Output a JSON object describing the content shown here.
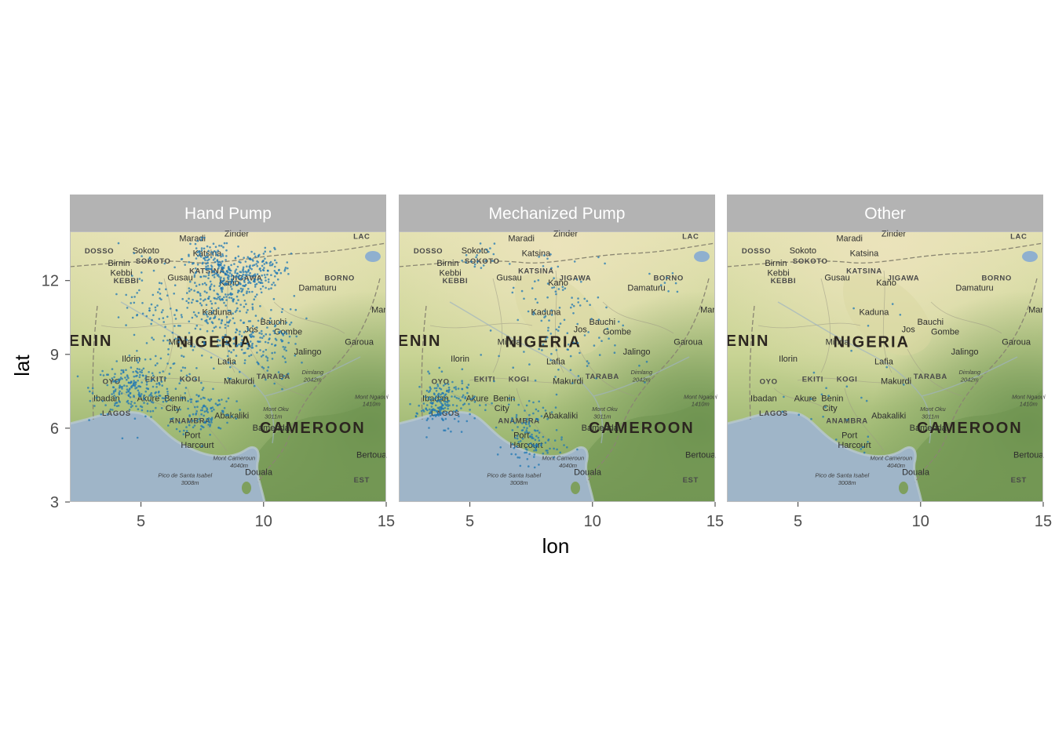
{
  "chart_data": {
    "type": "scatter",
    "xlabel": "lon",
    "ylabel": "lat",
    "xlim": [
      2.1,
      15.0
    ],
    "ylim": [
      3.0,
      14.0
    ],
    "x_ticks": [
      5,
      10,
      15
    ],
    "y_ticks": [
      3,
      6,
      9,
      12
    ],
    "facets": [
      "Hand Pump",
      "Mechanized Pump",
      "Other"
    ],
    "point_color": "#1f77b4",
    "strip_color": "#b3b3b3",
    "strip_text_color": "#ffffff",
    "map_labels": {
      "countries": [
        "NIGERIA",
        "CAMEROON",
        "ENIN"
      ],
      "regions": [
        "DOSSO",
        "SOKOTO",
        "KEBBI",
        "KATSINA",
        "JIGAWA",
        "BORNO",
        "KOGI",
        "TARABA",
        "EKITI",
        "OYO",
        "LAGOS",
        "ANAMBRA",
        "LAC",
        "EST"
      ],
      "cities": [
        "Maradi",
        "Zinder",
        "Sokoto",
        "Birnin",
        "Kebbi",
        "Gusau",
        "Katsina",
        "Kano",
        "Damaturu",
        "Kaduna",
        "Bauchi",
        "Gombe",
        "Jos",
        "Minna",
        "Garoua",
        "Jalingo",
        "Ilorin",
        "Lafia",
        "Makurdi",
        "Ibadan",
        "Akure",
        "Benin",
        "City",
        "Abakaliki",
        "Bamenda",
        "Port",
        "Harcourt",
        "Douala",
        "Bertoua",
        "Mar"
      ],
      "peaks": [
        "Mont Cameroun",
        "4040m",
        "Pico de Santa Isabel",
        "3008m",
        "Mont Oku",
        "3011m",
        "Dimlang",
        "2042m",
        "Mont Ngaoui",
        "1410m"
      ]
    },
    "series": [
      {
        "facet": "Hand Pump",
        "clusters": [
          {
            "lon": 8.4,
            "lat": 12.0,
            "sd_lon": 0.7,
            "sd_lat": 0.6,
            "n": 230
          },
          {
            "lon": 9.9,
            "lat": 12.4,
            "sd_lon": 0.6,
            "sd_lat": 0.4,
            "n": 120
          },
          {
            "lon": 7.7,
            "lat": 12.9,
            "sd_lon": 0.5,
            "sd_lat": 0.4,
            "n": 70
          },
          {
            "lon": 4.7,
            "lat": 7.6,
            "sd_lon": 0.8,
            "sd_lat": 0.5,
            "n": 210
          },
          {
            "lon": 7.6,
            "lat": 6.7,
            "sd_lon": 0.6,
            "sd_lat": 0.5,
            "n": 110
          },
          {
            "lon": 9.3,
            "lat": 9.4,
            "sd_lon": 0.6,
            "sd_lat": 0.5,
            "n": 90
          },
          {
            "lon": 8.2,
            "lat": 10.5,
            "sd_lon": 1.2,
            "sd_lat": 0.7,
            "n": 110
          },
          {
            "lon": 10.7,
            "lat": 9.5,
            "sd_lon": 0.4,
            "sd_lat": 0.8,
            "n": 50
          },
          {
            "lon": 5.2,
            "lat": 11.5,
            "sd_lon": 0.7,
            "sd_lat": 0.9,
            "n": 40
          },
          {
            "lon": 6.5,
            "lat": 9.0,
            "sd_lon": 1.2,
            "sd_lat": 1.2,
            "n": 90
          }
        ]
      },
      {
        "facet": "Mechanized Pump",
        "clusters": [
          {
            "lon": 4.0,
            "lat": 7.1,
            "sd_lon": 0.6,
            "sd_lat": 0.5,
            "n": 150
          },
          {
            "lon": 3.6,
            "lat": 6.6,
            "sd_lon": 0.3,
            "sd_lat": 0.2,
            "n": 40
          },
          {
            "lon": 7.6,
            "lat": 5.3,
            "sd_lon": 0.6,
            "sd_lat": 0.4,
            "n": 80
          },
          {
            "lon": 7.4,
            "lat": 6.5,
            "sd_lon": 0.5,
            "sd_lat": 0.4,
            "n": 40
          },
          {
            "lon": 8.4,
            "lat": 11.5,
            "sd_lon": 1.0,
            "sd_lat": 1.0,
            "n": 60
          },
          {
            "lon": 8.5,
            "lat": 9.0,
            "sd_lon": 1.3,
            "sd_lat": 1.1,
            "n": 60
          },
          {
            "lon": 5.4,
            "lat": 12.9,
            "sd_lon": 0.3,
            "sd_lat": 0.3,
            "n": 20
          },
          {
            "lon": 13.1,
            "lat": 11.8,
            "sd_lon": 0.3,
            "sd_lat": 0.3,
            "n": 8
          }
        ]
      },
      {
        "facet": "Other",
        "clusters": [
          {
            "lon": 5.5,
            "lat": 7.3,
            "sd_lon": 1.0,
            "sd_lat": 0.7,
            "n": 12
          },
          {
            "lon": 8.0,
            "lat": 8.5,
            "sd_lon": 1.5,
            "sd_lat": 1.5,
            "n": 10
          },
          {
            "lon": 7.5,
            "lat": 5.4,
            "sd_lon": 0.5,
            "sd_lat": 0.4,
            "n": 6
          }
        ]
      }
    ]
  }
}
